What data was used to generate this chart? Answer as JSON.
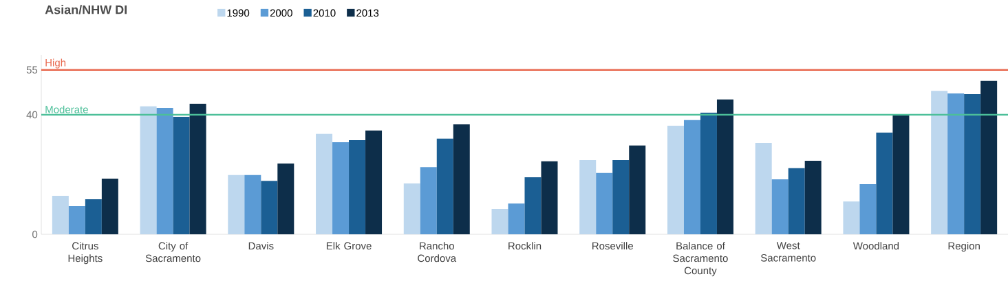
{
  "chart_data": {
    "type": "bar",
    "title": "Asian/NHW DI",
    "categories": [
      "Citrus Heights",
      "City of Sacramento",
      "Davis",
      "Elk Grove",
      "Rancho Cordova",
      "Rocklin",
      "Roseville",
      "Balance of Sacramento County",
      "West Sacramento",
      "Woodland",
      "Region"
    ],
    "series": [
      {
        "name": "1990",
        "color": "#bdd7ee",
        "values": [
          12.9,
          42.8,
          19.8,
          33.6,
          17.0,
          8.5,
          24.8,
          36.3,
          30.6,
          11.0,
          48.0
        ]
      },
      {
        "name": "2000",
        "color": "#5b9bd5",
        "values": [
          9.4,
          42.3,
          19.8,
          30.8,
          22.5,
          10.3,
          20.5,
          38.2,
          18.4,
          16.8,
          47.1
        ]
      },
      {
        "name": "2010",
        "color": "#1b5f94",
        "values": [
          11.7,
          39.3,
          17.9,
          31.5,
          32.0,
          19.1,
          24.8,
          40.7,
          22.1,
          34.0,
          46.9
        ]
      },
      {
        "name": "2013",
        "color": "#0d2e4a",
        "values": [
          18.6,
          43.7,
          23.7,
          34.7,
          36.8,
          24.4,
          29.7,
          45.1,
          24.6,
          39.8,
          51.3
        ]
      }
    ],
    "ylim": [
      0,
      60
    ],
    "yticks": [
      0,
      40,
      55
    ],
    "grid": false,
    "legend": "top",
    "ref_lines": [
      {
        "axis": "y",
        "value": 55,
        "label": "High",
        "color": "#e8694f"
      },
      {
        "axis": "y",
        "value": 40,
        "label": "Moderate",
        "color": "#4cbf99"
      }
    ]
  }
}
